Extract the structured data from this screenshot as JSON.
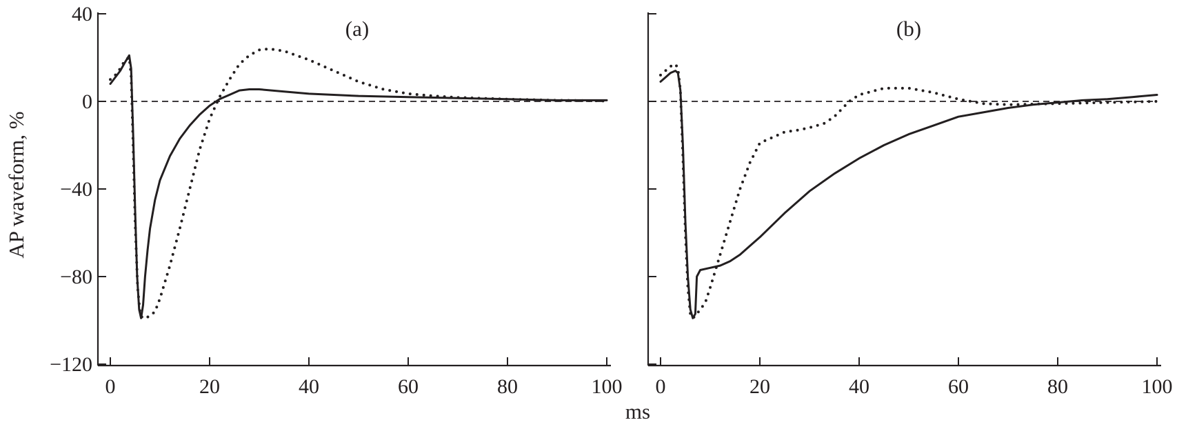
{
  "figure": {
    "ylabel": "AP waveform, %",
    "xlabel": "ms"
  },
  "chart_data": [
    {
      "type": "line",
      "panel_label": "(a)",
      "xlabel": "ms",
      "ylabel": "AP waveform, %",
      "xlim": [
        0,
        100
      ],
      "ylim": [
        -120,
        40
      ],
      "x_ticks": [
        0,
        20,
        40,
        60,
        80,
        100
      ],
      "y_ticks": [
        -120,
        -80,
        -40,
        0,
        40
      ],
      "x_tick_labels": [
        "0",
        "20",
        "40",
        "60",
        "80",
        "100"
      ],
      "y_tick_labels": [
        "−120",
        "−80",
        "−40",
        "0",
        "40"
      ],
      "reference_line": 0,
      "series": [
        {
          "style": "solid",
          "x": [
            0,
            1,
            2,
            3,
            3.8,
            4.2,
            4.6,
            5,
            5.4,
            5.8,
            6.2,
            6.6,
            7,
            7.5,
            8,
            9,
            10,
            12,
            14,
            16,
            18,
            20,
            22,
            24,
            26,
            28,
            30,
            35,
            40,
            50,
            60,
            70,
            80,
            90,
            100
          ],
          "y": [
            8,
            11,
            14,
            18,
            21,
            15,
            -15,
            -50,
            -80,
            -95,
            -99,
            -93,
            -80,
            -68,
            -58,
            -45,
            -36,
            -25,
            -17,
            -11,
            -6,
            -2,
            1,
            3,
            5,
            5.5,
            5.5,
            4.5,
            3.5,
            2.5,
            2,
            1.5,
            1,
            0.5,
            0.5
          ]
        },
        {
          "style": "dotted",
          "x": [
            0,
            1,
            2,
            3,
            3.8,
            4.2,
            4.6,
            5,
            5.5,
            6,
            6.5,
            7,
            8,
            9,
            10,
            12,
            14,
            16,
            18,
            20,
            22,
            24,
            26,
            28,
            30,
            32,
            35,
            40,
            45,
            50,
            55,
            60,
            65,
            70,
            80,
            90,
            100
          ],
          "y": [
            10,
            12,
            15,
            19,
            20,
            12,
            -20,
            -55,
            -85,
            -97,
            -99,
            -99,
            -98,
            -96,
            -90,
            -75,
            -58,
            -40,
            -22,
            -8,
            2,
            10,
            17,
            21,
            23.5,
            24,
            23,
            19,
            14,
            9,
            5.5,
            3.5,
            2.5,
            1.8,
            1,
            0.5,
            0.2
          ]
        }
      ]
    },
    {
      "type": "line",
      "panel_label": "(b)",
      "xlabel": "ms",
      "ylabel": "AP waveform, %",
      "xlim": [
        0,
        100
      ],
      "ylim": [
        -120,
        40
      ],
      "x_ticks": [
        0,
        20,
        40,
        60,
        80,
        100
      ],
      "y_ticks": [
        -120,
        -80,
        -40,
        0,
        40
      ],
      "x_tick_labels": [
        "0",
        "20",
        "40",
        "60",
        "80",
        "100"
      ],
      "reference_line": 0,
      "series": [
        {
          "style": "solid",
          "x": [
            0,
            1,
            2,
            3,
            3.5,
            4,
            4.5,
            5,
            5.5,
            6,
            6.5,
            7,
            7.3,
            8,
            10,
            12,
            14,
            16,
            18,
            20,
            25,
            30,
            35,
            40,
            45,
            50,
            55,
            60,
            65,
            70,
            75,
            80,
            85,
            90,
            95,
            100
          ],
          "y": [
            9,
            11,
            13,
            14,
            13,
            5,
            -20,
            -55,
            -80,
            -95,
            -99,
            -97,
            -80,
            -77,
            -76,
            -75,
            -73,
            -70,
            -66,
            -62,
            -51,
            -41,
            -33,
            -26,
            -20,
            -15,
            -11,
            -7,
            -5,
            -3,
            -1.5,
            -0.5,
            0.5,
            1,
            2,
            3
          ]
        },
        {
          "style": "dotted",
          "x": [
            0,
            1,
            2,
            3,
            3.5,
            4,
            4.5,
            5,
            5.5,
            6,
            6.5,
            7,
            8,
            9,
            10,
            12,
            14,
            16,
            18,
            20,
            22,
            25,
            28,
            30,
            33,
            35,
            38,
            40,
            45,
            50,
            55,
            60,
            65,
            70,
            80,
            90,
            100
          ],
          "y": [
            12,
            14,
            16,
            17,
            15,
            5,
            -25,
            -60,
            -85,
            -97,
            -99,
            -98,
            -95,
            -92,
            -85,
            -70,
            -55,
            -40,
            -28,
            -19,
            -17,
            -14,
            -13,
            -12,
            -10,
            -7,
            0,
            3,
            6,
            6,
            4,
            1,
            -1,
            -1.5,
            -1,
            -0.5,
            0
          ]
        }
      ]
    }
  ]
}
